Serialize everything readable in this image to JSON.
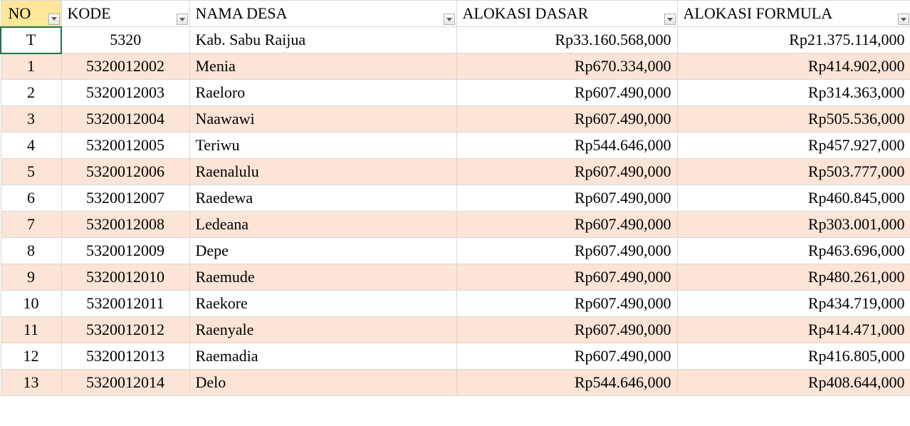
{
  "colors": {
    "header_no_bg": "#ffe699",
    "band_bg": "#fce4d6",
    "grid": "#d9d9d9",
    "active_border": "#1f7246"
  },
  "columns": [
    {
      "key": "no",
      "label": "NO"
    },
    {
      "key": "kode",
      "label": "KODE"
    },
    {
      "key": "nama",
      "label": "NAMA DESA"
    },
    {
      "key": "dasar",
      "label": "ALOKASI DASAR"
    },
    {
      "key": "formula",
      "label": "ALOKASI FORMULA"
    }
  ],
  "rows": [
    {
      "no": "T",
      "kode": "5320",
      "nama": "Kab. Sabu Raijua",
      "dasar": "Rp33.160.568,000",
      "formula": "Rp21.375.114,000",
      "band": false,
      "first": true
    },
    {
      "no": "1",
      "kode": "5320012002",
      "nama": "Menia",
      "dasar": "Rp670.334,000",
      "formula": "Rp414.902,000",
      "band": true,
      "first": false
    },
    {
      "no": "2",
      "kode": "5320012003",
      "nama": "Raeloro",
      "dasar": "Rp607.490,000",
      "formula": "Rp314.363,000",
      "band": false,
      "first": false
    },
    {
      "no": "3",
      "kode": "5320012004",
      "nama": "Naawawi",
      "dasar": "Rp607.490,000",
      "formula": "Rp505.536,000",
      "band": true,
      "first": false
    },
    {
      "no": "4",
      "kode": "5320012005",
      "nama": "Teriwu",
      "dasar": "Rp544.646,000",
      "formula": "Rp457.927,000",
      "band": false,
      "first": false
    },
    {
      "no": "5",
      "kode": "5320012006",
      "nama": "Raenalulu",
      "dasar": "Rp607.490,000",
      "formula": "Rp503.777,000",
      "band": true,
      "first": false
    },
    {
      "no": "6",
      "kode": "5320012007",
      "nama": "Raedewa",
      "dasar": "Rp607.490,000",
      "formula": "Rp460.845,000",
      "band": false,
      "first": false
    },
    {
      "no": "7",
      "kode": "5320012008",
      "nama": "Ledeana",
      "dasar": "Rp607.490,000",
      "formula": "Rp303.001,000",
      "band": true,
      "first": false
    },
    {
      "no": "8",
      "kode": "5320012009",
      "nama": "Depe",
      "dasar": "Rp607.490,000",
      "formula": "Rp463.696,000",
      "band": false,
      "first": false
    },
    {
      "no": "9",
      "kode": "5320012010",
      "nama": "Raemude",
      "dasar": "Rp607.490,000",
      "formula": "Rp480.261,000",
      "band": true,
      "first": false
    },
    {
      "no": "10",
      "kode": "5320012011",
      "nama": "Raekore",
      "dasar": "Rp607.490,000",
      "formula": "Rp434.719,000",
      "band": false,
      "first": false
    },
    {
      "no": "11",
      "kode": "5320012012",
      "nama": "Raenyale",
      "dasar": "Rp607.490,000",
      "formula": "Rp414.471,000",
      "band": true,
      "first": false
    },
    {
      "no": "12",
      "kode": "5320012013",
      "nama": "Raemadia",
      "dasar": "Rp607.490,000",
      "formula": "Rp416.805,000",
      "band": false,
      "first": false
    },
    {
      "no": "13",
      "kode": "5320012014",
      "nama": "Delo",
      "dasar": "Rp544.646,000",
      "formula": "Rp408.644,000",
      "band": true,
      "first": false
    }
  ]
}
